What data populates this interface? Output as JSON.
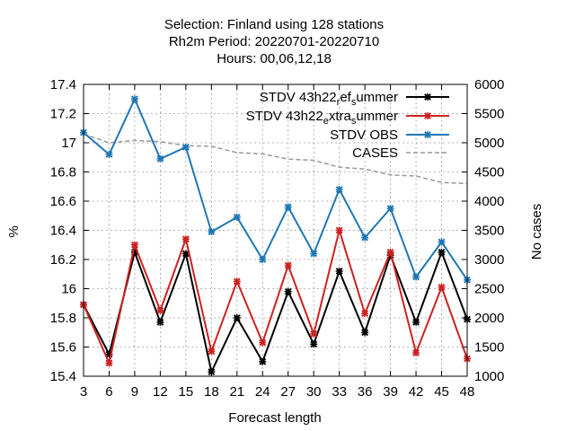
{
  "chart_data": {
    "type": "line",
    "title_lines": [
      "Selection: Finland using   128 stations",
      "Rh2m   Period: 20220701-20220710",
      "Hours:  00,06,12,18"
    ],
    "xlabel": "Forecast length",
    "ylabel": "%",
    "y2label": "No cases",
    "x": [
      3,
      6,
      9,
      12,
      15,
      18,
      21,
      24,
      27,
      30,
      33,
      36,
      39,
      42,
      45,
      48
    ],
    "xlim": [
      3,
      48
    ],
    "ylim": [
      15.4,
      17.4
    ],
    "y2lim": [
      1000,
      6000
    ],
    "yticks": [
      "15.4",
      "15.6",
      "15.8",
      "16",
      "16.2",
      "16.4",
      "16.6",
      "16.8",
      "17",
      "17.2",
      "17.4"
    ],
    "y2ticks": [
      "1000",
      "1500",
      "2000",
      "2500",
      "3000",
      "3500",
      "4000",
      "4500",
      "5000",
      "5500",
      "6000"
    ],
    "grid": true,
    "legend_position": "top-right",
    "series": [
      {
        "name": "STDV 43h22_ref_summer",
        "legend_parts": [
          "STDV 43h22",
          "r",
          "ef",
          "s",
          "ummer"
        ],
        "color": "#000000",
        "axis": "left",
        "values": [
          15.89,
          15.55,
          16.25,
          15.77,
          16.24,
          15.43,
          15.8,
          15.5,
          15.98,
          15.62,
          16.12,
          15.7,
          16.23,
          15.77,
          16.25,
          15.79
        ]
      },
      {
        "name": "STDV 43h22_extra_summer",
        "legend_parts": [
          "STDV 43h22",
          "e",
          "xtra",
          "s",
          "ummer"
        ],
        "color": "#cc2222",
        "axis": "left",
        "values": [
          15.89,
          15.49,
          16.3,
          15.85,
          16.34,
          15.57,
          16.05,
          15.63,
          16.16,
          15.69,
          16.4,
          15.83,
          16.25,
          15.56,
          16.01,
          15.52
        ]
      },
      {
        "name": "STDV OBS",
        "legend_parts": [
          "STDV OBS"
        ],
        "color": "#1f77b4",
        "axis": "left",
        "values": [
          17.07,
          16.92,
          17.3,
          16.89,
          16.97,
          16.39,
          16.49,
          16.2,
          16.56,
          16.24,
          16.68,
          16.35,
          16.55,
          16.08,
          16.32,
          16.06
        ]
      },
      {
        "name": "CASES",
        "legend_parts": [
          "CASES"
        ],
        "color": "#999999",
        "axis": "right",
        "dashed": true,
        "values": [
          5150,
          5000,
          5040,
          5020,
          4950,
          4940,
          4830,
          4810,
          4720,
          4700,
          4580,
          4550,
          4450,
          4430,
          4320,
          4300
        ]
      }
    ]
  }
}
